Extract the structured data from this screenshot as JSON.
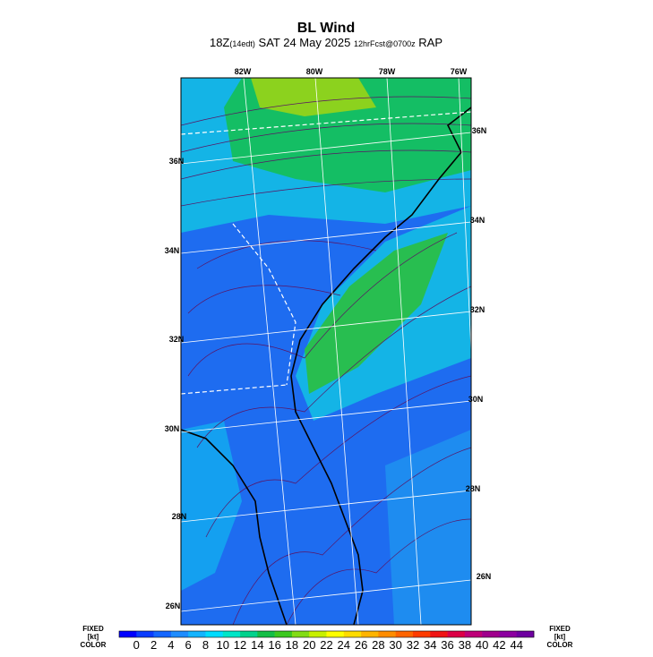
{
  "header": {
    "title": "BL Wind",
    "subtitle": [
      "18Z",
      "(14edt)",
      " SAT 24 May 2025 ",
      "12hrFcst@0700z",
      " RAP"
    ]
  },
  "map": {
    "lon_labels": [
      "82W",
      "80W",
      "78W",
      "76W"
    ],
    "lat_labels_left": [
      "36N",
      "34N",
      "32N",
      "30N",
      "28N",
      "26N"
    ],
    "lat_labels_right": [
      "36N",
      "34N",
      "32N",
      "30N",
      "28N",
      "26N"
    ]
  },
  "colorbar": {
    "left_label": [
      "FIXED",
      "[kt]",
      "COLOR"
    ],
    "right_label": [
      "FIXED",
      "[kt]",
      "COLOR"
    ],
    "ticks": [
      0,
      2,
      4,
      6,
      8,
      10,
      12,
      14,
      16,
      18,
      20,
      22,
      24,
      26,
      28,
      30,
      32,
      34,
      36,
      38,
      40,
      42,
      44
    ],
    "colors": [
      "#0000ff",
      "#0a3cff",
      "#1466ff",
      "#1e8cff",
      "#14b4ff",
      "#00dcff",
      "#00e6c8",
      "#00d28c",
      "#14be46",
      "#3cc81e",
      "#82dc14",
      "#c8f000",
      "#ffff00",
      "#ffdc00",
      "#ffb400",
      "#ff8c00",
      "#ff6400",
      "#ff3c00",
      "#f01414",
      "#dc0046",
      "#be0078",
      "#a0008c",
      "#8c00a0",
      "#6e00a0"
    ]
  }
}
